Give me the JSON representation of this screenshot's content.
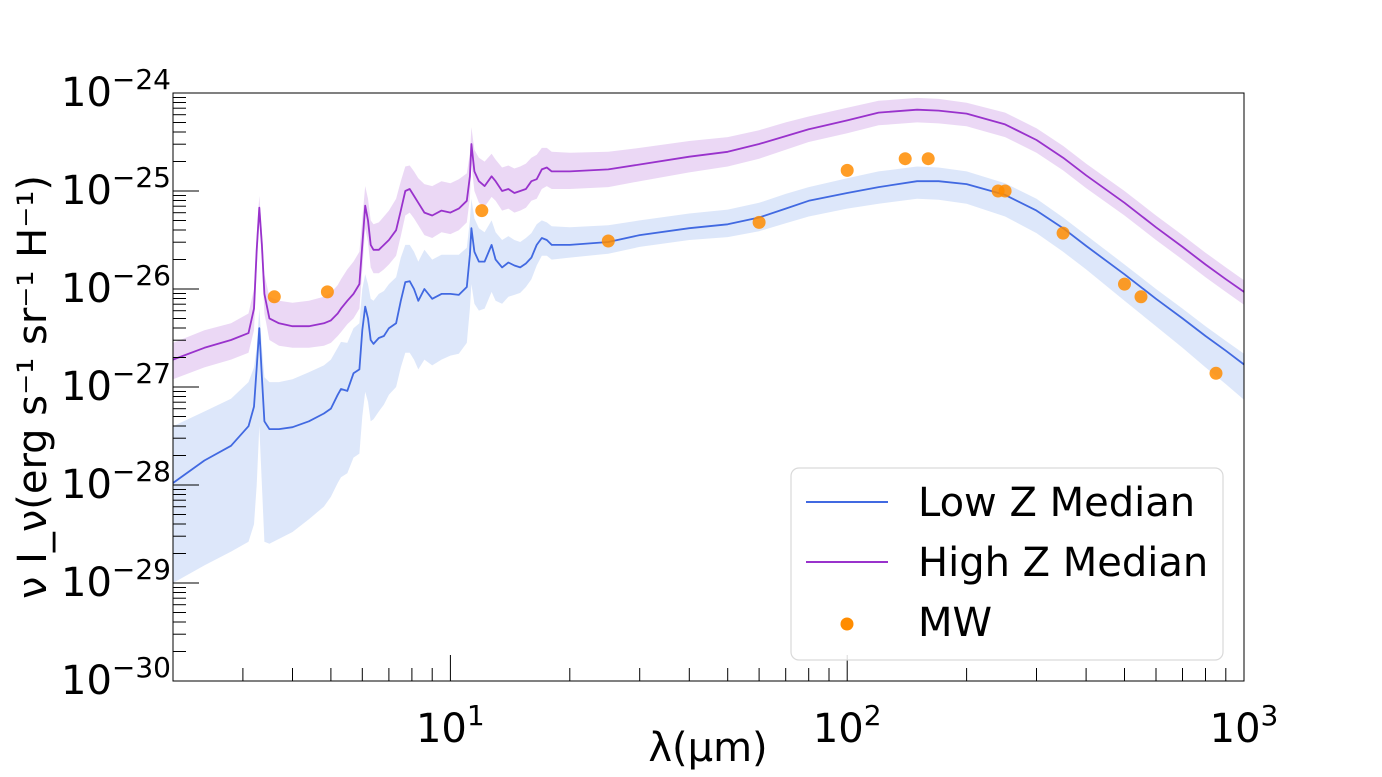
{
  "chart_data": {
    "type": "line",
    "xscale": "log",
    "yscale": "log",
    "xlim": [
      2,
      1000
    ],
    "ylim": [
      1e-30,
      1e-24
    ],
    "xlabel": "λ(μm)",
    "ylabel": "ν I_ν(erg s⁻¹ sr⁻¹ H⁻¹)",
    "grid": false,
    "legend_position": "bottom-right",
    "x_ticks": [
      {
        "base": "10",
        "exp": "1",
        "value": 10
      },
      {
        "base": "10",
        "exp": "2",
        "value": 100
      },
      {
        "base": "10",
        "exp": "3",
        "value": 1000
      }
    ],
    "y_ticks": [
      {
        "base": "10",
        "exp": "−24",
        "value": -24
      },
      {
        "base": "10",
        "exp": "−25",
        "value": -25
      },
      {
        "base": "10",
        "exp": "−26",
        "value": -26
      },
      {
        "base": "10",
        "exp": "−27",
        "value": -27
      },
      {
        "base": "10",
        "exp": "−28",
        "value": -28
      },
      {
        "base": "10",
        "exp": "−29",
        "value": -29
      },
      {
        "base": "10",
        "exp": "−30",
        "value": -30
      }
    ],
    "series": [
      {
        "name": "Low Z Median",
        "kind": "line_with_band",
        "line_color": "#4169e1",
        "band_color": "#aec6f2",
        "band_opacity": 0.42,
        "x": [
          2.0,
          2.4,
          2.8,
          3.1,
          3.2,
          3.25,
          3.3,
          3.35,
          3.4,
          3.5,
          3.7,
          4.0,
          4.4,
          4.8,
          5.0,
          5.2,
          5.3,
          5.5,
          5.7,
          5.9,
          6.0,
          6.1,
          6.2,
          6.3,
          6.4,
          6.6,
          6.8,
          7.0,
          7.3,
          7.5,
          7.7,
          7.9,
          8.1,
          8.3,
          8.6,
          9.0,
          9.5,
          10.0,
          10.5,
          11.0,
          11.2,
          11.3,
          11.5,
          11.8,
          12.2,
          12.7,
          13.0,
          13.5,
          14.0,
          14.5,
          15.0,
          15.5,
          16.0,
          16.5,
          17.0,
          17.5,
          18.0,
          20,
          25,
          30,
          40,
          50,
          60,
          70,
          80,
          100,
          120,
          150,
          170,
          200,
          250,
          300,
          350,
          400,
          500,
          600,
          700,
          800,
          900,
          1000
        ],
        "y": [
          -27.98,
          -27.75,
          -27.6,
          -27.4,
          -27.2,
          -26.8,
          -26.4,
          -26.9,
          -27.35,
          -27.43,
          -27.43,
          -27.41,
          -27.35,
          -27.27,
          -27.22,
          -27.08,
          -27.02,
          -27.04,
          -26.86,
          -26.82,
          -26.42,
          -26.18,
          -26.3,
          -26.52,
          -26.56,
          -26.5,
          -26.48,
          -26.4,
          -26.35,
          -26.12,
          -25.93,
          -25.92,
          -26.0,
          -26.12,
          -26.0,
          -26.1,
          -26.05,
          -26.05,
          -26.06,
          -25.98,
          -25.65,
          -25.38,
          -25.62,
          -25.72,
          -25.72,
          -25.55,
          -25.7,
          -25.78,
          -25.73,
          -25.76,
          -25.78,
          -25.74,
          -25.68,
          -25.55,
          -25.48,
          -25.5,
          -25.55,
          -25.55,
          -25.52,
          -25.45,
          -25.38,
          -25.34,
          -25.27,
          -25.18,
          -25.1,
          -25.02,
          -24.96,
          -24.9,
          -24.9,
          -24.93,
          -25.04,
          -25.2,
          -25.38,
          -25.56,
          -25.85,
          -26.1,
          -26.3,
          -26.48,
          -26.63,
          -26.77
        ],
        "upper": [
          -27.4,
          -27.25,
          -27.12,
          -26.95,
          -26.8,
          -26.6,
          -26.2,
          -26.6,
          -26.9,
          -26.95,
          -26.95,
          -26.92,
          -26.85,
          -26.78,
          -26.72,
          -26.6,
          -26.54,
          -26.55,
          -26.4,
          -26.35,
          -26.0,
          -25.85,
          -25.95,
          -26.1,
          -26.12,
          -26.05,
          -26.02,
          -25.95,
          -25.88,
          -25.68,
          -25.55,
          -25.55,
          -25.62,
          -25.72,
          -25.6,
          -25.7,
          -25.65,
          -25.65,
          -25.65,
          -25.58,
          -25.3,
          -25.08,
          -25.28,
          -25.38,
          -25.42,
          -25.3,
          -25.42,
          -25.5,
          -25.46,
          -25.5,
          -25.52,
          -25.48,
          -25.43,
          -25.34,
          -25.3,
          -25.32,
          -25.36,
          -25.37,
          -25.35,
          -25.3,
          -25.23,
          -25.19,
          -25.12,
          -25.03,
          -24.96,
          -24.87,
          -24.8,
          -24.75,
          -24.76,
          -24.8,
          -24.92,
          -25.08,
          -25.27,
          -25.45,
          -25.75,
          -26.0,
          -26.2,
          -26.38,
          -26.53,
          -26.66
        ],
        "lower": [
          -29.0,
          -28.82,
          -28.68,
          -28.58,
          -28.4,
          -28.0,
          -27.4,
          -28.0,
          -28.58,
          -28.6,
          -28.55,
          -28.48,
          -28.35,
          -28.22,
          -28.12,
          -27.98,
          -27.92,
          -27.88,
          -27.72,
          -27.68,
          -27.3,
          -27.05,
          -27.15,
          -27.35,
          -27.33,
          -27.25,
          -27.18,
          -27.08,
          -27.0,
          -26.8,
          -26.65,
          -26.65,
          -26.72,
          -26.82,
          -26.72,
          -26.78,
          -26.72,
          -26.68,
          -26.66,
          -26.55,
          -26.2,
          -25.95,
          -26.15,
          -26.22,
          -26.2,
          -26.03,
          -26.12,
          -26.15,
          -26.08,
          -26.06,
          -26.04,
          -25.98,
          -25.9,
          -25.76,
          -25.66,
          -25.66,
          -25.7,
          -25.68,
          -25.64,
          -25.57,
          -25.5,
          -25.47,
          -25.41,
          -25.33,
          -25.26,
          -25.18,
          -25.13,
          -25.08,
          -25.09,
          -25.13,
          -25.26,
          -25.43,
          -25.62,
          -25.8,
          -26.12,
          -26.38,
          -26.6,
          -26.8,
          -26.97,
          -27.13
        ]
      },
      {
        "name": "High Z Median",
        "kind": "line_with_band",
        "line_color": "#9932cc",
        "band_color": "#cfa3e6",
        "band_opacity": 0.42,
        "x": [
          2.0,
          2.4,
          2.8,
          3.1,
          3.2,
          3.25,
          3.3,
          3.35,
          3.4,
          3.5,
          3.7,
          4.0,
          4.4,
          4.8,
          5.0,
          5.2,
          5.3,
          5.5,
          5.7,
          5.9,
          6.0,
          6.1,
          6.2,
          6.3,
          6.4,
          6.6,
          6.8,
          7.0,
          7.3,
          7.5,
          7.7,
          7.9,
          8.1,
          8.3,
          8.6,
          9.0,
          9.5,
          10.0,
          10.5,
          11.0,
          11.2,
          11.3,
          11.5,
          11.8,
          12.2,
          12.7,
          13.0,
          13.5,
          14.0,
          14.5,
          15.0,
          15.5,
          16.0,
          16.5,
          17.0,
          17.5,
          18.0,
          20,
          25,
          30,
          40,
          50,
          60,
          70,
          80,
          100,
          120,
          150,
          170,
          200,
          250,
          300,
          350,
          400,
          500,
          600,
          700,
          800,
          900,
          1000
        ],
        "y": [
          -26.72,
          -26.6,
          -26.52,
          -26.45,
          -26.2,
          -25.6,
          -25.17,
          -25.55,
          -26.05,
          -26.3,
          -26.35,
          -26.38,
          -26.38,
          -26.35,
          -26.32,
          -26.25,
          -26.2,
          -26.12,
          -26.05,
          -25.95,
          -25.55,
          -25.15,
          -25.3,
          -25.55,
          -25.6,
          -25.6,
          -25.55,
          -25.5,
          -25.4,
          -25.2,
          -25.0,
          -24.98,
          -25.05,
          -25.12,
          -25.22,
          -25.25,
          -25.2,
          -25.22,
          -25.18,
          -25.1,
          -24.85,
          -24.52,
          -24.8,
          -24.9,
          -24.95,
          -24.85,
          -24.9,
          -25.0,
          -24.98,
          -25.02,
          -25.0,
          -24.98,
          -24.9,
          -24.88,
          -24.78,
          -24.76,
          -24.8,
          -24.8,
          -24.78,
          -24.73,
          -24.65,
          -24.6,
          -24.52,
          -24.44,
          -24.37,
          -24.28,
          -24.2,
          -24.17,
          -24.18,
          -24.21,
          -24.32,
          -24.48,
          -24.66,
          -24.84,
          -25.12,
          -25.37,
          -25.57,
          -25.75,
          -25.9,
          -26.03
        ],
        "upper": [
          -26.55,
          -26.42,
          -26.35,
          -26.25,
          -26.0,
          -25.45,
          -25.05,
          -25.4,
          -25.85,
          -26.08,
          -26.12,
          -26.14,
          -26.12,
          -26.08,
          -26.04,
          -25.96,
          -25.9,
          -25.8,
          -25.72,
          -25.62,
          -25.28,
          -24.95,
          -25.08,
          -25.3,
          -25.34,
          -25.32,
          -25.26,
          -25.2,
          -25.08,
          -24.9,
          -24.75,
          -24.74,
          -24.8,
          -24.87,
          -24.93,
          -24.95,
          -24.9,
          -24.92,
          -24.88,
          -24.82,
          -24.62,
          -24.35,
          -24.58,
          -24.66,
          -24.7,
          -24.62,
          -24.68,
          -24.76,
          -24.74,
          -24.77,
          -24.75,
          -24.72,
          -24.66,
          -24.63,
          -24.56,
          -24.56,
          -24.6,
          -24.61,
          -24.6,
          -24.56,
          -24.49,
          -24.45,
          -24.38,
          -24.3,
          -24.24,
          -24.15,
          -24.08,
          -24.05,
          -24.06,
          -24.1,
          -24.2,
          -24.36,
          -24.54,
          -24.72,
          -25.0,
          -25.25,
          -25.45,
          -25.63,
          -25.78,
          -25.91
        ],
        "lower": [
          -26.92,
          -26.8,
          -26.72,
          -26.65,
          -26.42,
          -25.8,
          -25.3,
          -25.72,
          -26.25,
          -26.52,
          -26.58,
          -26.6,
          -26.6,
          -26.58,
          -26.55,
          -26.48,
          -26.44,
          -26.36,
          -26.3,
          -26.2,
          -25.8,
          -25.38,
          -25.52,
          -25.78,
          -25.84,
          -25.84,
          -25.8,
          -25.75,
          -25.66,
          -25.46,
          -25.25,
          -25.22,
          -25.28,
          -25.35,
          -25.45,
          -25.48,
          -25.42,
          -25.44,
          -25.4,
          -25.32,
          -25.07,
          -24.72,
          -25.0,
          -25.12,
          -25.16,
          -25.06,
          -25.1,
          -25.2,
          -25.18,
          -25.22,
          -25.2,
          -25.17,
          -25.1,
          -25.08,
          -24.98,
          -24.95,
          -24.98,
          -24.98,
          -24.96,
          -24.9,
          -24.81,
          -24.75,
          -24.67,
          -24.58,
          -24.5,
          -24.41,
          -24.33,
          -24.3,
          -24.31,
          -24.34,
          -24.45,
          -24.61,
          -24.79,
          -24.97,
          -25.25,
          -25.5,
          -25.7,
          -25.88,
          -26.03,
          -26.16
        ]
      },
      {
        "name": "MW",
        "kind": "scatter",
        "color": "#ff8c00",
        "marker_opacity": 0.85,
        "x": [
          3.6,
          4.9,
          12,
          25,
          60,
          100,
          140,
          160,
          240,
          250,
          350,
          500,
          550,
          850
        ],
        "y": [
          -26.08,
          -26.03,
          -25.2,
          -25.51,
          -25.32,
          -24.79,
          -24.67,
          -24.67,
          -25.0,
          -25.0,
          -25.43,
          -25.95,
          -26.08,
          -26.86
        ]
      }
    ]
  }
}
